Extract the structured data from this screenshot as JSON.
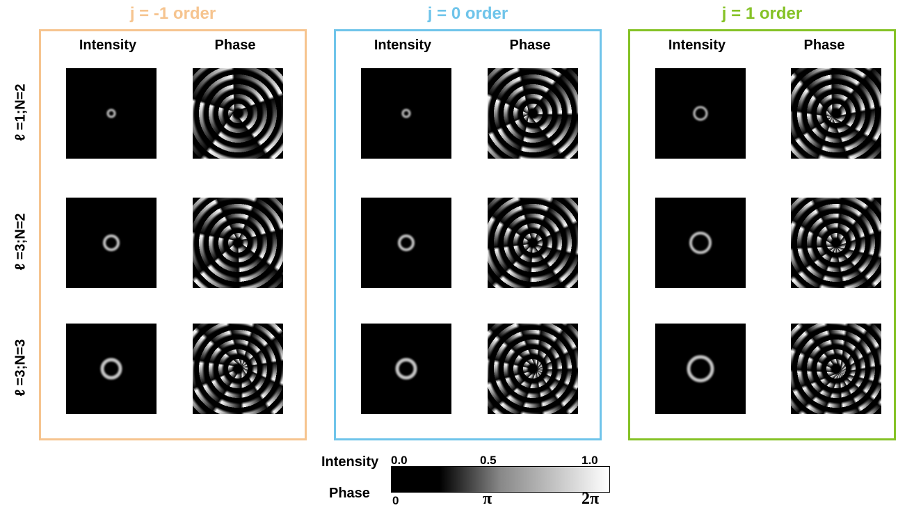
{
  "panels": [
    {
      "title": "j = -1 order",
      "color": "#f6c48f",
      "columns": [
        "Intensity",
        "Phase"
      ]
    },
    {
      "title": "j = 0 order",
      "color": "#6fc4ea",
      "columns": [
        "Intensity",
        "Phase"
      ]
    },
    {
      "title": "j = 1 order",
      "color": "#85c226",
      "columns": [
        "Intensity",
        "Phase"
      ]
    }
  ],
  "rows": [
    "ℓ =1;N=2",
    "ℓ =3;N=2",
    "ℓ =3;N=3"
  ],
  "colorbar": {
    "intensity_label": "Intensity",
    "phase_label": "Phase",
    "intensity_ticks": [
      "0.0",
      "0.5",
      "1.0"
    ],
    "phase_ticks": [
      "0",
      "π",
      "2π"
    ]
  }
}
